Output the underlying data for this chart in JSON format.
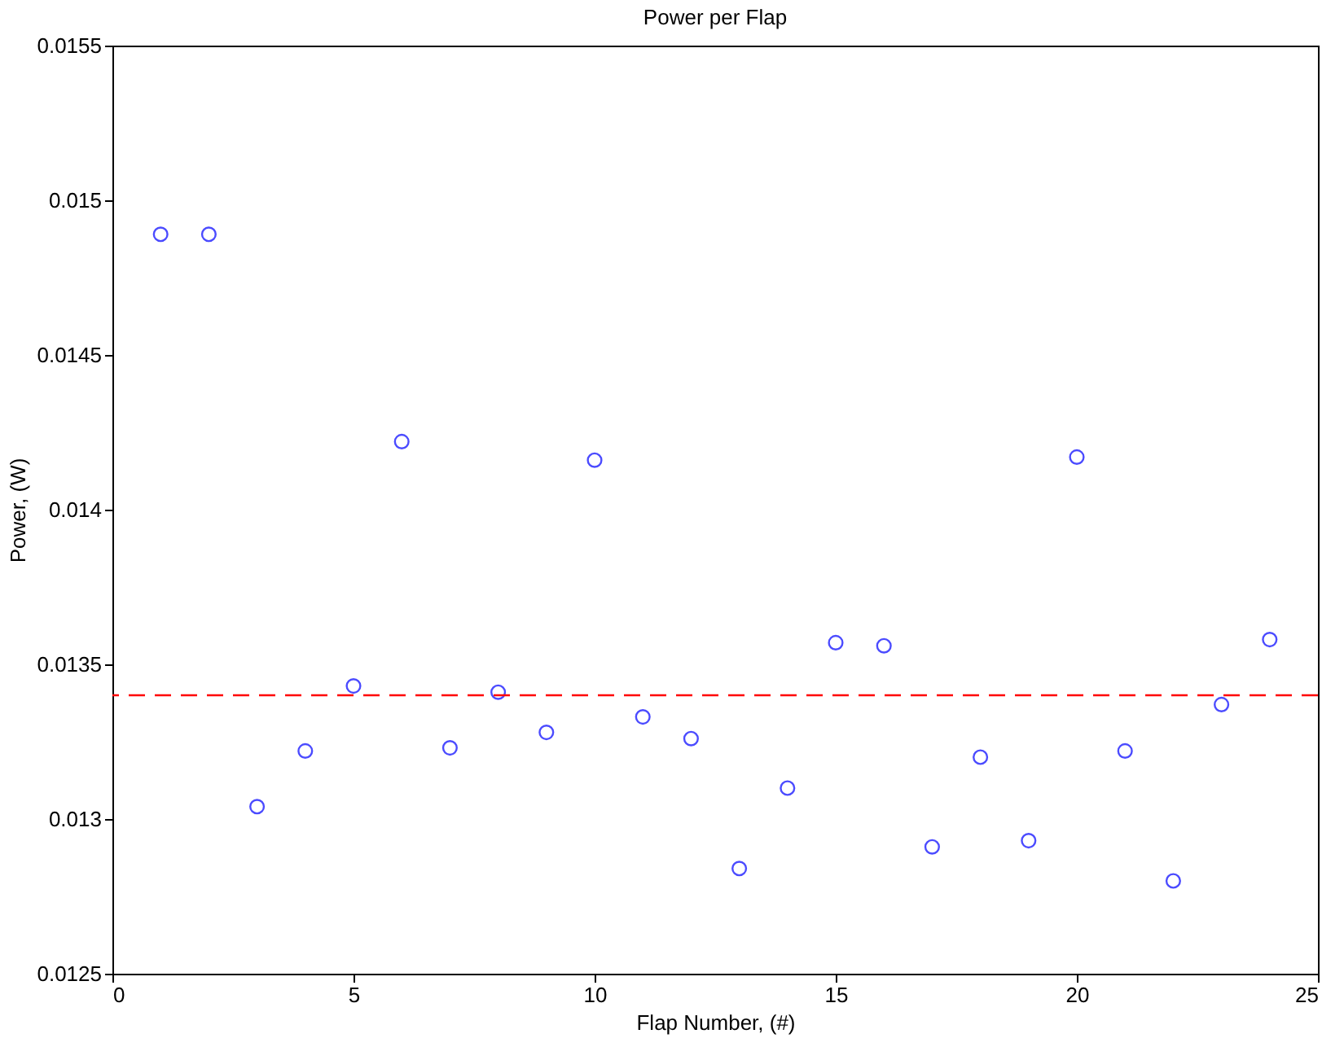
{
  "chart_data": {
    "type": "scatter",
    "title": "Power per Flap",
    "xlabel": "Flap Number, (#)",
    "ylabel": "Power, (W)",
    "x": [
      1,
      2,
      3,
      4,
      5,
      6,
      7,
      8,
      9,
      10,
      11,
      12,
      13,
      14,
      15,
      16,
      17,
      18,
      19,
      20,
      21,
      22,
      23,
      24
    ],
    "series": [
      {
        "color": "#0000ff",
        "values": [
          0.01489,
          0.01489,
          0.01304,
          0.01322,
          0.01343,
          0.01422,
          0.01323,
          0.01341,
          0.01328,
          0.01416,
          0.01333,
          0.01326,
          0.01284,
          0.0131,
          0.01357,
          0.01356,
          0.01291,
          0.0132,
          0.01293,
          0.01417,
          0.01322,
          0.0128,
          0.01337,
          0.01358
        ]
      }
    ],
    "marker": "circle",
    "xlim": [
      0,
      25
    ],
    "xticks": [
      0,
      5,
      10,
      15,
      20,
      25
    ],
    "ylim": [
      0.0125,
      0.0155
    ],
    "yticks": [
      0.0125,
      0.013,
      0.0135,
      0.014,
      0.0145,
      0.015,
      0.0155
    ],
    "ref_lines": [
      {
        "axis": "y",
        "value": 0.0134,
        "color": "#ff0000",
        "line_style": "dashed"
      }
    ],
    "grid": false
  }
}
